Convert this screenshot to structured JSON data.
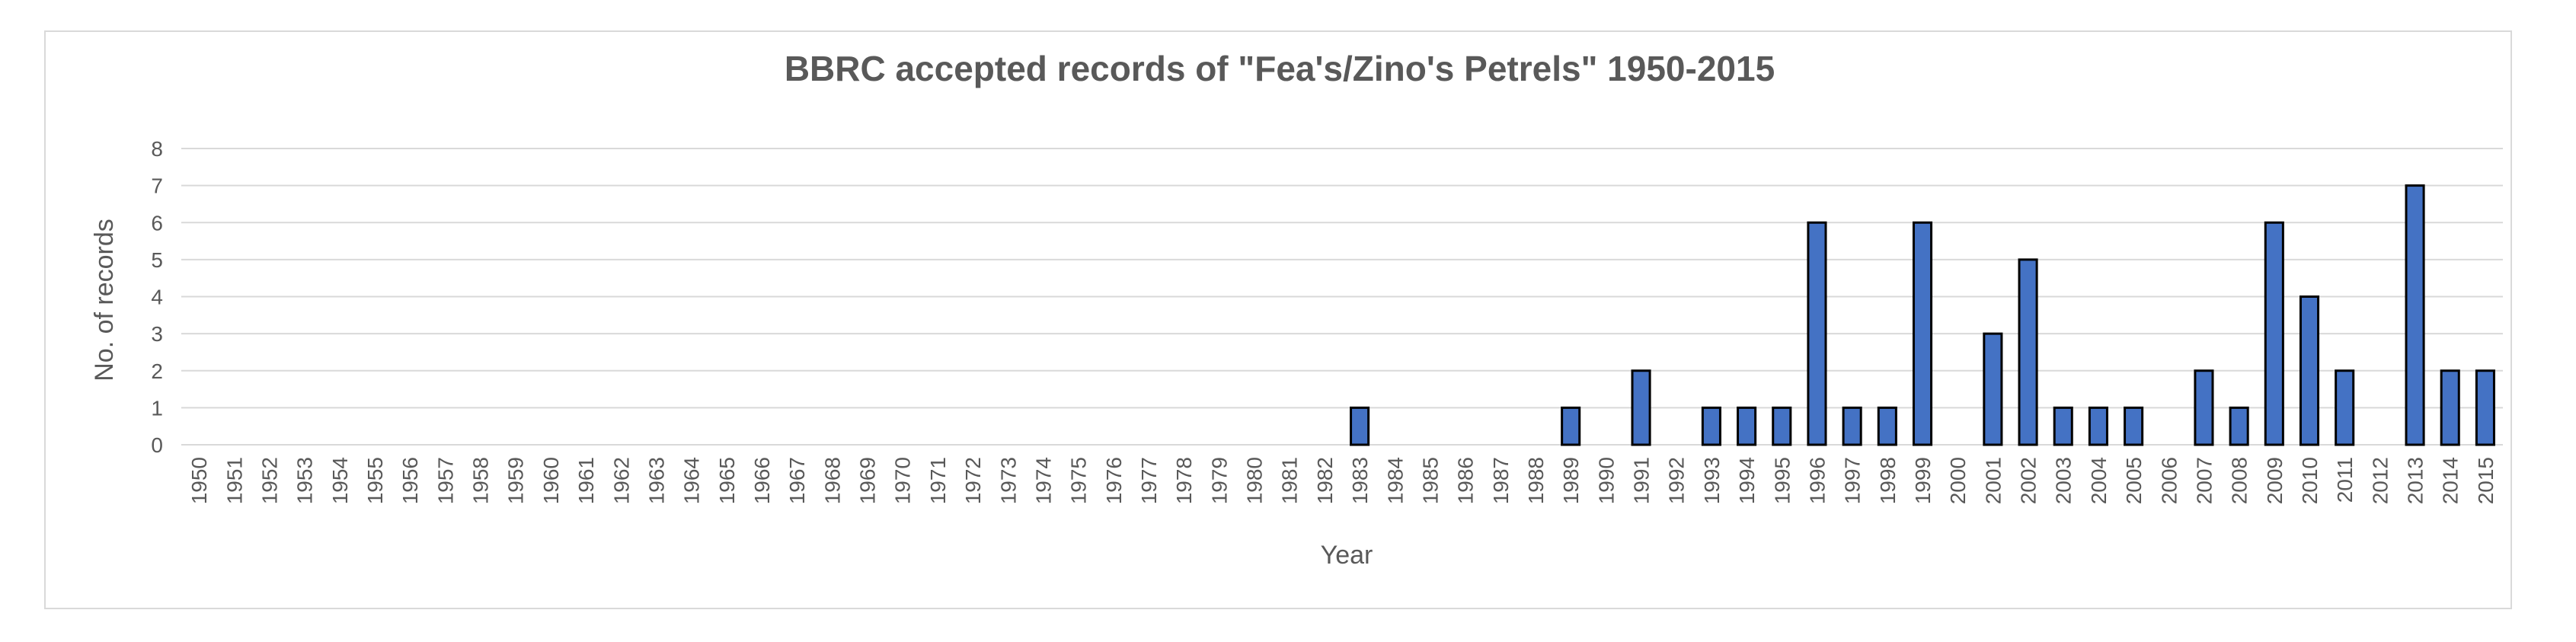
{
  "chart_data": {
    "type": "bar",
    "title": "BBRC accepted records of \"Fea's/Zino's Petrels\" 1950-2015",
    "xlabel": "Year",
    "ylabel": "No. of records",
    "ylim": [
      0,
      8
    ],
    "yticks": [
      0,
      1,
      2,
      3,
      4,
      5,
      6,
      7,
      8
    ],
    "grid": true,
    "legend": "none",
    "bar_color": "#4472c4",
    "bar_edge_color": "#000000",
    "categories": [
      "1950",
      "1951",
      "1952",
      "1953",
      "1954",
      "1955",
      "1956",
      "1957",
      "1958",
      "1959",
      "1960",
      "1961",
      "1962",
      "1963",
      "1964",
      "1965",
      "1966",
      "1967",
      "1968",
      "1969",
      "1970",
      "1971",
      "1972",
      "1973",
      "1974",
      "1975",
      "1976",
      "1977",
      "1978",
      "1979",
      "1980",
      "1981",
      "1982",
      "1983",
      "1984",
      "1985",
      "1986",
      "1987",
      "1988",
      "1989",
      "1990",
      "1991",
      "1992",
      "1993",
      "1994",
      "1995",
      "1996",
      "1997",
      "1998",
      "1999",
      "2000",
      "2001",
      "2002",
      "2003",
      "2004",
      "2005",
      "2006",
      "2007",
      "2008",
      "2009",
      "2010",
      "2011",
      "2012",
      "2013",
      "2014",
      "2015"
    ],
    "values": [
      0,
      0,
      0,
      0,
      0,
      0,
      0,
      0,
      0,
      0,
      0,
      0,
      0,
      0,
      0,
      0,
      0,
      0,
      0,
      0,
      0,
      0,
      0,
      0,
      0,
      0,
      0,
      0,
      0,
      0,
      0,
      0,
      0,
      1,
      0,
      0,
      0,
      0,
      0,
      1,
      0,
      2,
      0,
      1,
      1,
      1,
      6,
      1,
      1,
      6,
      0,
      3,
      5,
      1,
      1,
      1,
      0,
      2,
      1,
      6,
      4,
      2,
      0,
      7,
      2,
      2
    ]
  }
}
